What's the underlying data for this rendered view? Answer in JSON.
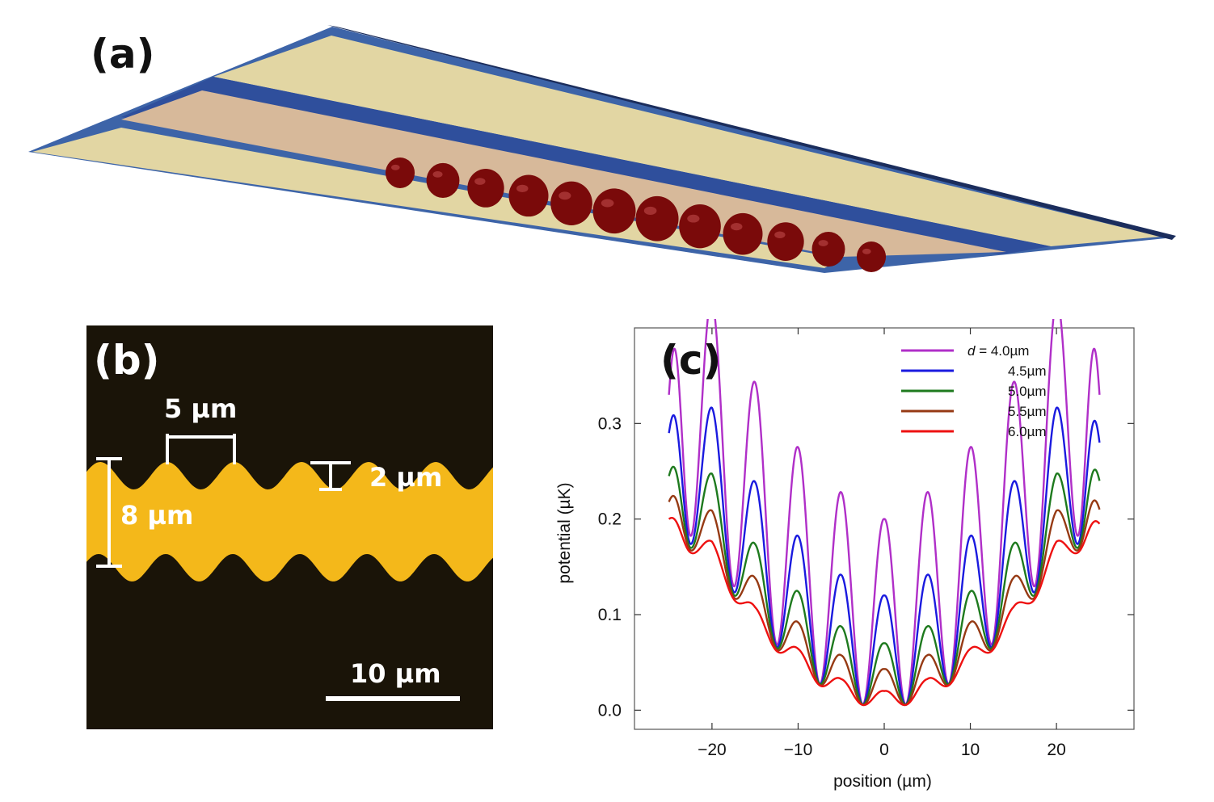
{
  "figure": {
    "panel_a": {
      "label": "(a)",
      "atom_count": 12
    },
    "panel_b": {
      "label": "(b)",
      "period_label": "5 µm",
      "amplitude_label": "2 µm",
      "width_label": "8 µm",
      "scalebar_label": "10 µm"
    },
    "panel_c": {
      "label": "(c)"
    }
  },
  "colors": {
    "stripe_fill": "#e2d6a3",
    "stripe_edge": "#3d64a8",
    "channel_fill": "#d7b99a",
    "atom": "#7a0a0a",
    "gold": "#f4b81a",
    "background_dark": "#1a1408"
  },
  "chart_data": {
    "type": "line",
    "title": "",
    "xlabel": "position (µm)",
    "ylabel": "potential (µK)",
    "xlim": [
      -29,
      29
    ],
    "ylim": [
      -0.02,
      0.4
    ],
    "xticks": [
      -20,
      -10,
      0,
      10,
      20
    ],
    "xtick_labels": [
      "−20",
      "−10",
      "0",
      "10",
      "20"
    ],
    "yticks": [
      0.0,
      0.1,
      0.2,
      0.3
    ],
    "ytick_labels": [
      "0.0",
      "0.1",
      "0.2",
      "0.3"
    ],
    "grid": false,
    "legend_position": "top-right",
    "legend_prefix": "d",
    "legend_prefix_suffix": " = ",
    "x_min": -25,
    "x_max": 25,
    "period_um": 5,
    "series": [
      {
        "name": "4.0µm",
        "legend_label": "4.0µm",
        "color": "#b02fc8",
        "barrier": 0.2,
        "envelope": [
          0.0,
          0.012,
          0.043,
          0.095,
          0.165,
          0.2
        ],
        "start": 0.33,
        "end": 0.33
      },
      {
        "name": "4.5µm",
        "legend_label": "4.5µm",
        "color": "#1a1adf",
        "barrier": 0.12,
        "envelope": [
          0.0,
          0.012,
          0.043,
          0.09,
          0.158,
          0.19
        ],
        "start": 0.29,
        "end": 0.28
      },
      {
        "name": "5.0µm",
        "legend_label": "5.0µm",
        "color": "#1e7a1e",
        "barrier": 0.07,
        "envelope": [
          0.0,
          0.012,
          0.043,
          0.087,
          0.155,
          0.185
        ],
        "start": 0.245,
        "end": 0.24
      },
      {
        "name": "5.5µm",
        "legend_label": "5.5µm",
        "color": "#963a14",
        "barrier": 0.043,
        "envelope": [
          0.0,
          0.011,
          0.042,
          0.085,
          0.152,
          0.183
        ],
        "start": 0.218,
        "end": 0.21
      },
      {
        "name": "6.0µm",
        "legend_label": "6.0µm",
        "color": "#ee1111",
        "barrier": 0.02,
        "envelope": [
          0.0,
          0.011,
          0.041,
          0.083,
          0.15,
          0.18
        ],
        "start": 0.2,
        "end": 0.195
      }
    ]
  }
}
